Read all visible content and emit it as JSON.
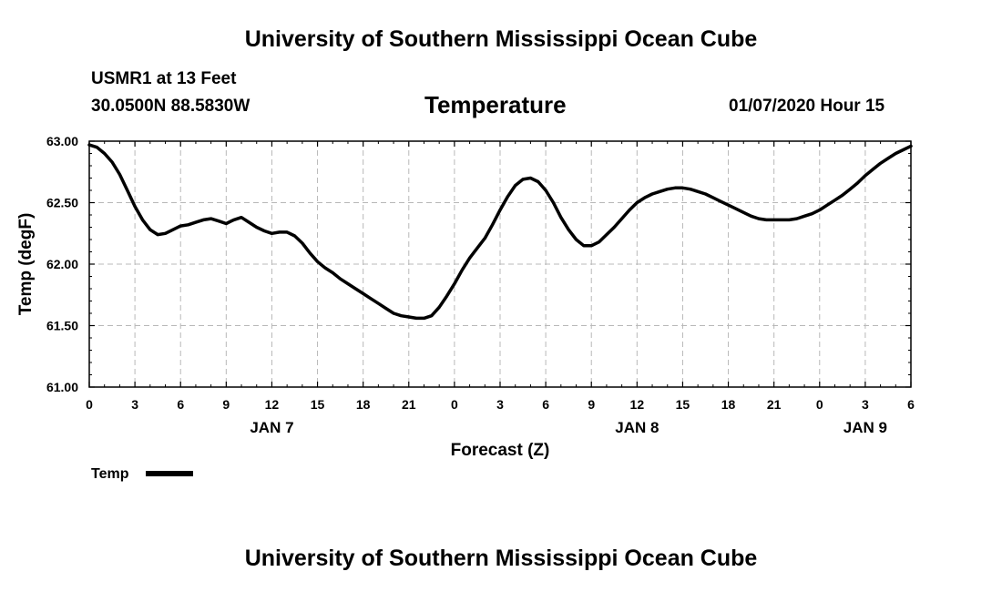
{
  "header": {
    "top_title": "University of Southern Mississippi Ocean Cube",
    "station": "USMR1 at 13 Feet",
    "coords": "30.0500N 88.5830W",
    "chart_title": "Temperature",
    "datetime": "01/07/2020 Hour 15",
    "bottom_title": "University of Southern Mississippi Ocean Cube"
  },
  "legend": {
    "label": "Temp"
  },
  "chart_data": {
    "type": "line",
    "title": "Temperature",
    "xlabel": "Forecast (Z)",
    "ylabel": "Temp (degF)",
    "xlim": [
      0,
      54
    ],
    "ylim": [
      61.0,
      63.0
    ],
    "grid": true,
    "yticks": [
      {
        "value": 61.0,
        "label": "61.00"
      },
      {
        "value": 61.5,
        "label": "61.50"
      },
      {
        "value": 62.0,
        "label": "62.00"
      },
      {
        "value": 62.5,
        "label": "62.50"
      },
      {
        "value": 63.0,
        "label": "63.00"
      }
    ],
    "xticks": [
      {
        "value": 0,
        "label": "0"
      },
      {
        "value": 3,
        "label": "3"
      },
      {
        "value": 6,
        "label": "6"
      },
      {
        "value": 9,
        "label": "9"
      },
      {
        "value": 12,
        "label": "12"
      },
      {
        "value": 15,
        "label": "15"
      },
      {
        "value": 18,
        "label": "18"
      },
      {
        "value": 21,
        "label": "21"
      },
      {
        "value": 24,
        "label": "0"
      },
      {
        "value": 27,
        "label": "3"
      },
      {
        "value": 30,
        "label": "6"
      },
      {
        "value": 33,
        "label": "9"
      },
      {
        "value": 36,
        "label": "12"
      },
      {
        "value": 39,
        "label": "15"
      },
      {
        "value": 42,
        "label": "18"
      },
      {
        "value": 45,
        "label": "21"
      },
      {
        "value": 48,
        "label": "0"
      },
      {
        "value": 51,
        "label": "3"
      },
      {
        "value": 54,
        "label": "6"
      }
    ],
    "day_labels": [
      {
        "value": 12,
        "label": "JAN 7"
      },
      {
        "value": 36,
        "label": "JAN 8"
      },
      {
        "value": 51,
        "label": "JAN 9"
      }
    ],
    "series": [
      {
        "name": "Temp",
        "x": [
          0,
          0.5,
          1,
          1.5,
          2,
          2.5,
          3,
          3.5,
          4,
          4.5,
          5,
          5.5,
          6,
          6.5,
          7,
          7.5,
          8,
          8.5,
          9,
          9.5,
          10,
          10.5,
          11,
          11.5,
          12,
          12.5,
          13,
          13.5,
          14,
          14.5,
          15,
          15.5,
          16,
          16.5,
          17,
          17.5,
          18,
          18.5,
          19,
          19.5,
          20,
          20.5,
          21,
          21.5,
          22,
          22.5,
          23,
          23.5,
          24,
          24.5,
          25,
          25.5,
          26,
          26.5,
          27,
          27.5,
          28,
          28.5,
          29,
          29.5,
          30,
          30.5,
          31,
          31.5,
          32,
          32.5,
          33,
          33.5,
          34,
          34.5,
          35,
          35.5,
          36,
          36.5,
          37,
          37.5,
          38,
          38.5,
          39,
          39.5,
          40,
          40.5,
          41,
          41.5,
          42,
          42.5,
          43,
          43.5,
          44,
          44.5,
          45,
          45.5,
          46,
          46.5,
          47,
          47.5,
          48,
          48.5,
          49,
          49.5,
          50,
          50.5,
          51,
          51.5,
          52,
          52.5,
          53,
          53.5,
          54
        ],
        "values": [
          62.97,
          62.95,
          62.9,
          62.83,
          62.73,
          62.6,
          62.47,
          62.36,
          62.28,
          62.24,
          62.25,
          62.28,
          62.31,
          62.32,
          62.34,
          62.36,
          62.37,
          62.35,
          62.33,
          62.36,
          62.38,
          62.34,
          62.3,
          62.27,
          62.25,
          62.26,
          62.26,
          62.23,
          62.17,
          62.09,
          62.02,
          61.97,
          61.93,
          61.88,
          61.84,
          61.8,
          61.76,
          61.72,
          61.68,
          61.64,
          61.6,
          61.58,
          61.57,
          61.56,
          61.56,
          61.58,
          61.65,
          61.74,
          61.84,
          61.95,
          62.05,
          62.13,
          62.21,
          62.32,
          62.44,
          62.55,
          62.64,
          62.69,
          62.7,
          62.67,
          62.6,
          62.5,
          62.38,
          62.28,
          62.2,
          62.15,
          62.15,
          62.18,
          62.24,
          62.3,
          62.37,
          62.44,
          62.5,
          62.54,
          62.57,
          62.59,
          62.61,
          62.62,
          62.62,
          62.61,
          62.59,
          62.57,
          62.54,
          62.51,
          62.48,
          62.45,
          62.42,
          62.39,
          62.37,
          62.36,
          62.36,
          62.36,
          62.36,
          62.37,
          62.39,
          62.41,
          62.44,
          62.48,
          62.52,
          62.56,
          62.61,
          62.66,
          62.72,
          62.77,
          62.82,
          62.86,
          62.9,
          62.93,
          62.96
        ]
      }
    ]
  }
}
